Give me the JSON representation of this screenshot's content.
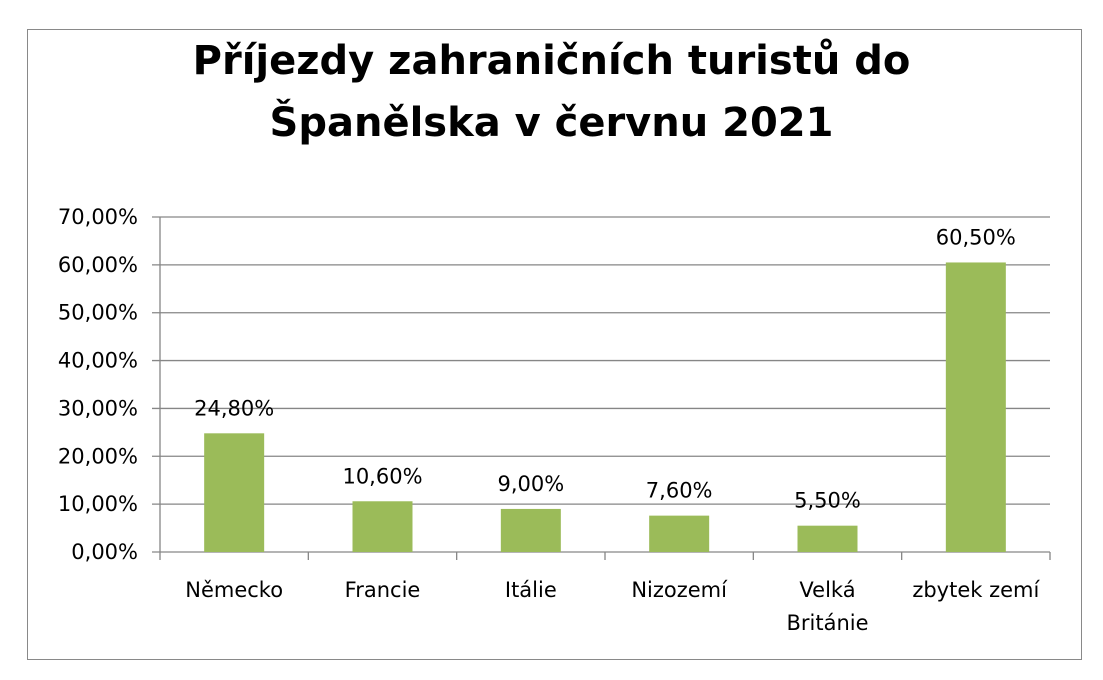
{
  "chart_data": {
    "type": "bar",
    "title_lines": [
      "Příjezdy zahraničních turistů do",
      "Španělska v červnu 2021"
    ],
    "categories": [
      [
        "Německo"
      ],
      [
        "Francie"
      ],
      [
        "Itálie"
      ],
      [
        "Nizozemí"
      ],
      [
        "Velká",
        "Británie"
      ],
      [
        "zbytek zemí"
      ]
    ],
    "values": [
      24.8,
      10.6,
      9.0,
      7.6,
      5.5,
      60.5
    ],
    "data_labels": [
      "24,80%",
      "10,60%",
      "9,00%",
      "7,60%",
      "5,50%",
      "60,50%"
    ],
    "y_ticks": [
      "0,00%",
      "10,00%",
      "20,00%",
      "30,00%",
      "40,00%",
      "50,00%",
      "60,00%",
      "70,00%"
    ],
    "ylim": [
      0,
      70
    ],
    "grid": true,
    "legend": "none",
    "bar_color": "#9BBB59",
    "grid_color": "#868686"
  }
}
